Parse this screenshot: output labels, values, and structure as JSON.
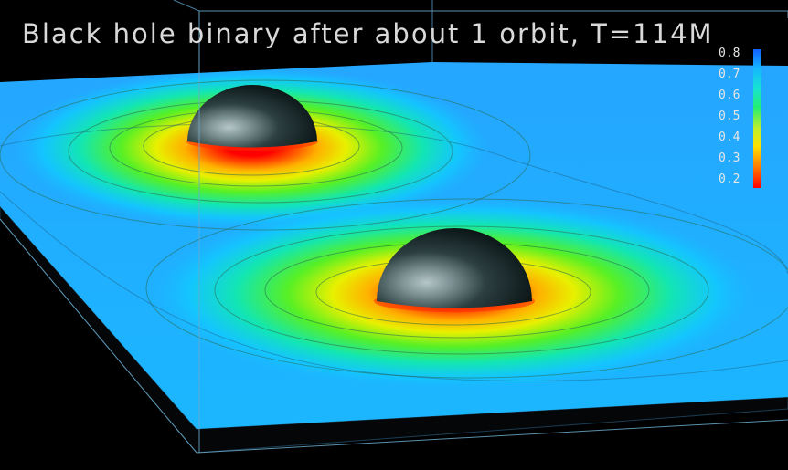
{
  "title": "Black hole binary after about 1 orbit, T=114M",
  "colorbar": {
    "ticks": [
      "0.8",
      "0.7",
      "0.6",
      "0.5",
      "0.4",
      "0.3",
      "0.2"
    ],
    "colors": {
      "high": "#1160ff",
      "mid_high": "#16e2d2",
      "mid": "#23f070",
      "mid_low": "#ffe100",
      "low": "#ff0000"
    }
  }
}
